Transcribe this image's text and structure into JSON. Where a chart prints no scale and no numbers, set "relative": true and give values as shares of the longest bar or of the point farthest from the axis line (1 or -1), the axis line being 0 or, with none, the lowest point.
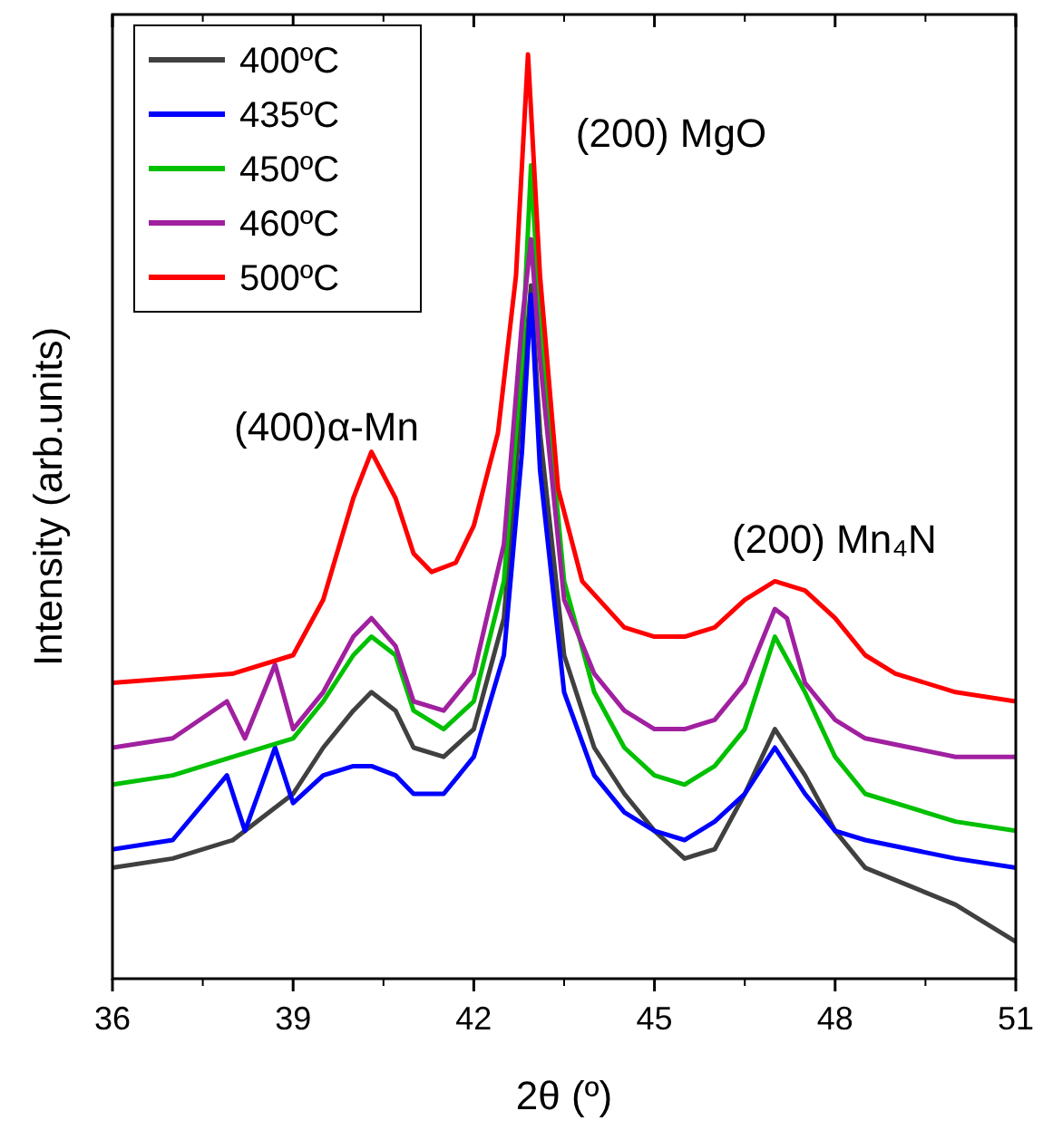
{
  "chart_data": {
    "type": "line",
    "relative": true,
    "xlabel": "2θ (º)",
    "ylabel": "Intensity (arb.units)",
    "xlim": [
      36,
      51
    ],
    "xticks": [
      36,
      39,
      42,
      45,
      48,
      51
    ],
    "legend": "top left",
    "grid": false,
    "line_style": "solid",
    "annotations": [
      "(400)α-Mn",
      "(200) MgO",
      "(200) Mn₄N"
    ],
    "series": [
      {
        "name": "400ºC",
        "color": "#404040",
        "x": [
          36,
          37,
          38,
          39,
          39.5,
          40,
          40.3,
          40.7,
          41,
          41.5,
          42,
          42.5,
          42.8,
          42.95,
          43.1,
          43.5,
          44,
          44.5,
          45,
          45.5,
          46,
          46.5,
          47,
          47.5,
          48,
          48.5,
          50,
          51
        ],
        "values": [
          0.12,
          0.13,
          0.15,
          0.2,
          0.25,
          0.29,
          0.31,
          0.29,
          0.25,
          0.24,
          0.27,
          0.39,
          0.63,
          0.75,
          0.59,
          0.35,
          0.25,
          0.2,
          0.16,
          0.13,
          0.14,
          0.2,
          0.27,
          0.22,
          0.16,
          0.12,
          0.08,
          0.04
        ]
      },
      {
        "name": "435ºC",
        "color": "#0000ff",
        "x": [
          36,
          37,
          37.9,
          38.2,
          38.7,
          39,
          39.5,
          40,
          40.3,
          40.7,
          41,
          41.5,
          42,
          42.5,
          42.8,
          42.95,
          43.1,
          43.5,
          44,
          44.5,
          45,
          45.5,
          46,
          46.5,
          47,
          47.5,
          48,
          48.5,
          50,
          51
        ],
        "values": [
          0.14,
          0.15,
          0.22,
          0.16,
          0.25,
          0.19,
          0.22,
          0.23,
          0.23,
          0.22,
          0.2,
          0.2,
          0.24,
          0.35,
          0.57,
          0.74,
          0.55,
          0.31,
          0.22,
          0.18,
          0.16,
          0.15,
          0.17,
          0.2,
          0.25,
          0.2,
          0.16,
          0.15,
          0.13,
          0.12
        ]
      },
      {
        "name": "450ºC",
        "color": "#00c000",
        "x": [
          36,
          37,
          38,
          39,
          39.5,
          40,
          40.3,
          40.7,
          41,
          41.5,
          42,
          42.5,
          42.8,
          42.95,
          43.1,
          43.5,
          44,
          44.5,
          45,
          45.5,
          46,
          46.5,
          47,
          47.5,
          48,
          48.5,
          50,
          51
        ],
        "values": [
          0.21,
          0.22,
          0.24,
          0.26,
          0.3,
          0.35,
          0.37,
          0.35,
          0.29,
          0.27,
          0.3,
          0.43,
          0.67,
          0.88,
          0.71,
          0.43,
          0.31,
          0.25,
          0.22,
          0.21,
          0.23,
          0.27,
          0.37,
          0.31,
          0.24,
          0.2,
          0.17,
          0.16
        ]
      },
      {
        "name": "460ºC",
        "color": "#a020a0",
        "x": [
          36,
          37,
          37.9,
          38.2,
          38.7,
          39,
          39.5,
          40,
          40.3,
          40.7,
          41,
          41.5,
          42,
          42.5,
          42.8,
          42.95,
          43.1,
          43.5,
          44,
          44.5,
          45,
          45.5,
          46,
          46.5,
          47,
          47.2,
          47.5,
          48,
          48.5,
          50,
          51
        ],
        "values": [
          0.25,
          0.26,
          0.3,
          0.26,
          0.34,
          0.27,
          0.31,
          0.37,
          0.39,
          0.36,
          0.3,
          0.29,
          0.33,
          0.47,
          0.71,
          0.8,
          0.67,
          0.41,
          0.33,
          0.29,
          0.27,
          0.27,
          0.28,
          0.32,
          0.4,
          0.39,
          0.32,
          0.28,
          0.26,
          0.24,
          0.24
        ]
      },
      {
        "name": "500ºC",
        "color": "#ff0000",
        "x": [
          36,
          38,
          39,
          39.5,
          40,
          40.3,
          40.7,
          41,
          41.3,
          41.7,
          42,
          42.4,
          42.7,
          42.9,
          43.1,
          43.4,
          43.8,
          44.5,
          45,
          45.5,
          46,
          46.5,
          47,
          47.5,
          48,
          48.5,
          49,
          50,
          51
        ],
        "values": [
          0.32,
          0.33,
          0.35,
          0.41,
          0.52,
          0.57,
          0.52,
          0.46,
          0.44,
          0.45,
          0.49,
          0.59,
          0.76,
          1.0,
          0.76,
          0.53,
          0.43,
          0.38,
          0.37,
          0.37,
          0.38,
          0.41,
          0.43,
          0.42,
          0.39,
          0.35,
          0.33,
          0.31,
          0.3
        ]
      }
    ]
  }
}
